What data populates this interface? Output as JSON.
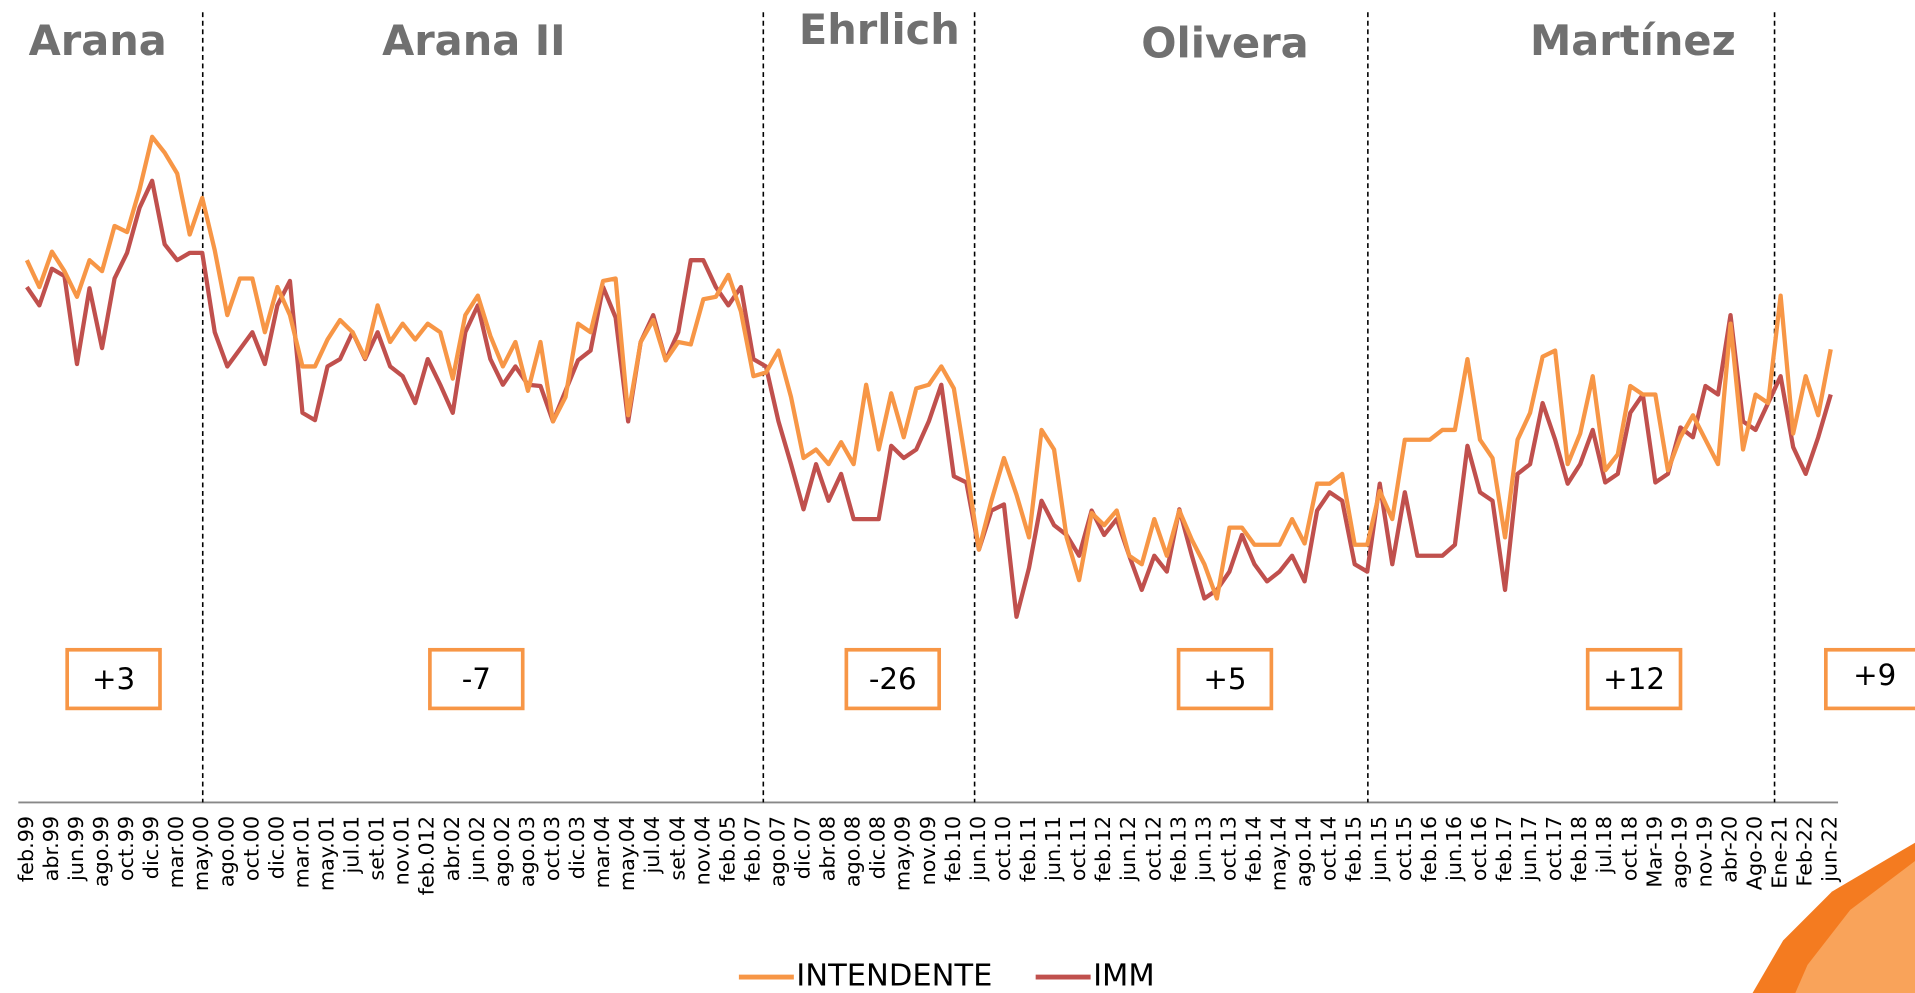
{
  "chart_data": {
    "type": "line",
    "period_names": [
      "Arana",
      "Arana II",
      "Ehrlich",
      "Olivera",
      "Martínez"
    ],
    "annotations": [
      "+3",
      "-7",
      "-26",
      "+5",
      "+12",
      "+9"
    ],
    "categories": [
      "feb.99",
      null,
      "abr.99",
      null,
      "jun.99",
      null,
      "ago.99",
      null,
      "oct.99",
      null,
      "dic.99",
      null,
      "mar.00",
      null,
      "may.00",
      null,
      "ago.00",
      null,
      "oct.00",
      null,
      "dic.00",
      null,
      "mar.01",
      null,
      "may.01",
      null,
      "jul.01",
      null,
      "set.01",
      null,
      "nov.01",
      null,
      "feb.012",
      null,
      "abr.02",
      null,
      "jun.02",
      null,
      "ago.02",
      null,
      "ago.03",
      null,
      "oct.03",
      null,
      "dic.03",
      null,
      "mar.04",
      null,
      "may.04",
      null,
      "jul.04",
      null,
      "set.04",
      null,
      "nov.04",
      null,
      "feb.05",
      null,
      "feb.07",
      null,
      "ago.07",
      null,
      "dic.07",
      null,
      "abr.08",
      null,
      "ago.08",
      null,
      "dic.08",
      null,
      "may.09",
      null,
      "nov.09",
      null,
      "feb.10",
      null,
      "jun.10",
      null,
      "oct.10",
      null,
      "feb.11",
      null,
      "jun.11",
      null,
      "oct.11",
      null,
      "feb.12",
      null,
      "jun.12",
      null,
      "oct.12",
      null,
      "feb.13",
      null,
      "jun.13",
      null,
      "oct.13",
      null,
      "feb.14",
      null,
      "may.14",
      null,
      "ago.14",
      null,
      "oct.14",
      null,
      "feb.15",
      null,
      "jun.15",
      null,
      "oct.15",
      null,
      "feb.16",
      null,
      "jun.16",
      null,
      "oct.16",
      null,
      "feb.17",
      null,
      "jun.17",
      null,
      "oct.17",
      null,
      "feb.18",
      null,
      "jul.18",
      null,
      "oct.18",
      null,
      "Mar-19",
      null,
      "ago-19",
      null,
      "nov-19",
      null,
      "abr-20",
      null,
      "Ago-20",
      null,
      "Ene-21",
      null,
      "Feb-22",
      null,
      "jun-22"
    ],
    "series": [
      {
        "name": "INTENDENTE",
        "color": "#F79646",
        "values": [
          44.4,
          42.2,
          45.1,
          43.5,
          41.4,
          44.4,
          43.5,
          47.2,
          46.7,
          50.2,
          54.5,
          53.2,
          51.5,
          46.5,
          49.5,
          45.2,
          39.9,
          42.9,
          42.9,
          38.5,
          42.2,
          39.9,
          35.7,
          35.7,
          37.9,
          39.5,
          38.5,
          36.4,
          40.7,
          37.7,
          39.2,
          37.9,
          39.2,
          38.5,
          34.7,
          39.9,
          41.5,
          38.2,
          35.7,
          37.7,
          33.7,
          37.7,
          31.2,
          33.2,
          39.2,
          38.5,
          42.7,
          42.9,
          31.7,
          37.7,
          39.5,
          36.2,
          37.7,
          37.5,
          41.2,
          41.4,
          43.2,
          40.2,
          34.9,
          35.2,
          37.0,
          33.2,
          28.2,
          28.9,
          27.7,
          29.5,
          27.7,
          34.2,
          28.9,
          33.5,
          29.9,
          33.9,
          34.2,
          35.7,
          33.9,
          27.5,
          20.7,
          24.7,
          28.2,
          25.2,
          21.7,
          30.5,
          28.9,
          21.7,
          18.2,
          23.7,
          22.7,
          23.9,
          20.2,
          19.5,
          23.2,
          20.2,
          23.9,
          21.5,
          19.5,
          16.7,
          22.5,
          22.5,
          21.1,
          21.1,
          21.1,
          23.2,
          21.2,
          26.1,
          26.1,
          26.9,
          21.1,
          21.1,
          25.5,
          23.2,
          29.7,
          29.7,
          29.7,
          30.5,
          30.5,
          36.3,
          29.7,
          28.2,
          21.7,
          29.7,
          31.9,
          36.5,
          37.0,
          27.7,
          30.2,
          34.9,
          27.2,
          28.5,
          34.1,
          33.4,
          33.4,
          27.2,
          29.9,
          31.7,
          29.7,
          27.7,
          39.2,
          28.9,
          33.4,
          32.7,
          41.5,
          30.2,
          34.9,
          31.7,
          37.1
        ]
      },
      {
        "name": "IMM",
        "color": "#C0504D",
        "values": [
          42.2,
          40.7,
          43.7,
          43.1,
          35.9,
          42.1,
          37.2,
          42.9,
          45.0,
          48.7,
          50.9,
          45.7,
          44.4,
          45.0,
          45.0,
          38.5,
          35.7,
          37.1,
          38.5,
          35.9,
          40.7,
          42.7,
          31.9,
          31.3,
          35.7,
          36.3,
          38.5,
          36.3,
          38.5,
          35.7,
          34.9,
          32.7,
          36.3,
          34.2,
          31.9,
          38.5,
          40.7,
          36.3,
          34.2,
          35.7,
          34.2,
          34.1,
          31.2,
          33.7,
          36.2,
          37.0,
          42.2,
          39.7,
          31.2,
          37.7,
          39.9,
          36.2,
          38.5,
          44.4,
          44.4,
          42.2,
          40.7,
          42.2,
          36.3,
          35.7,
          31.2,
          27.7,
          24.0,
          27.7,
          24.7,
          26.9,
          23.2,
          23.2,
          23.2,
          29.2,
          28.2,
          28.9,
          31.2,
          34.2,
          26.7,
          26.2,
          20.7,
          23.9,
          24.4,
          15.2,
          19.2,
          24.7,
          22.7,
          21.9,
          20.2,
          23.9,
          21.9,
          23.2,
          20.2,
          17.4,
          20.2,
          18.9,
          24.0,
          20.2,
          16.7,
          17.4,
          18.9,
          21.9,
          19.5,
          18.1,
          18.9,
          20.2,
          18.1,
          23.9,
          25.4,
          24.7,
          19.5,
          18.9,
          26.1,
          19.5,
          25.4,
          20.2,
          20.2,
          20.2,
          21.1,
          29.2,
          25.4,
          24.7,
          17.4,
          26.9,
          27.7,
          32.7,
          29.7,
          26.1,
          27.7,
          30.5,
          26.2,
          26.9,
          31.9,
          33.4,
          26.2,
          26.9,
          30.7,
          29.9,
          34.1,
          33.4,
          39.9,
          31.2,
          30.5,
          32.7,
          34.9,
          29.1,
          26.9,
          29.9,
          33.4
        ]
      }
    ],
    "ylim": [
      0,
      64
    ],
    "grid": false,
    "legend": "bottom"
  }
}
